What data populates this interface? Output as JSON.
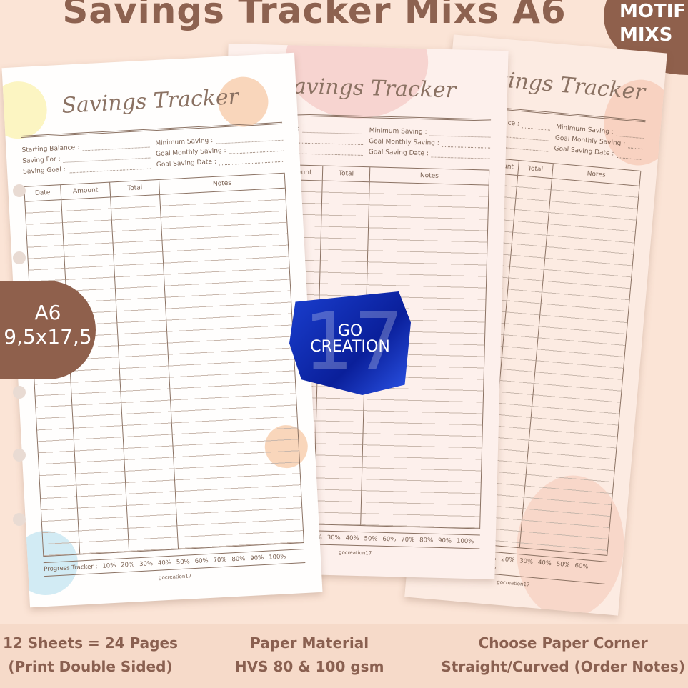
{
  "header": {
    "title": "Savings Tracker Mixs A6",
    "badge": [
      "MOTIF",
      "MIXS"
    ]
  },
  "size_badge": {
    "label": "A6",
    "dimensions": "9,5x17,5"
  },
  "sheet": {
    "title": "Savings Tracker",
    "fields_left": [
      "Starting Balance :",
      "Saving For :",
      "Saving Goal :"
    ],
    "fields_right": [
      "Minimum Saving :",
      "Goal Monthly Saving :",
      "Goal Saving Date :"
    ],
    "columns": [
      "Date",
      "Amount",
      "Total",
      "Notes"
    ],
    "progress_label": "Progress Tracker :",
    "progress_steps": [
      "10%",
      "20%",
      "30%",
      "40%",
      "50%",
      "60%",
      "70%",
      "80%",
      "90%",
      "100%"
    ],
    "footer": "gocreation17"
  },
  "watermark": {
    "number": "17",
    "line1": "GO",
    "line2": "CREATION"
  },
  "features": [
    {
      "line1": "12 Sheets = 24 Pages",
      "line2": "(Print Double Sided)"
    },
    {
      "line1": "Paper Material",
      "line2": "HVS 80 & 100 gsm"
    },
    {
      "line1": "Choose Paper Corner",
      "line2": "Straight/Curved (Order Notes)"
    }
  ],
  "colors": {
    "brand_brown": "#8f604c",
    "background": "#fbe4d6",
    "watermark_blue": "#1a3fd0"
  }
}
